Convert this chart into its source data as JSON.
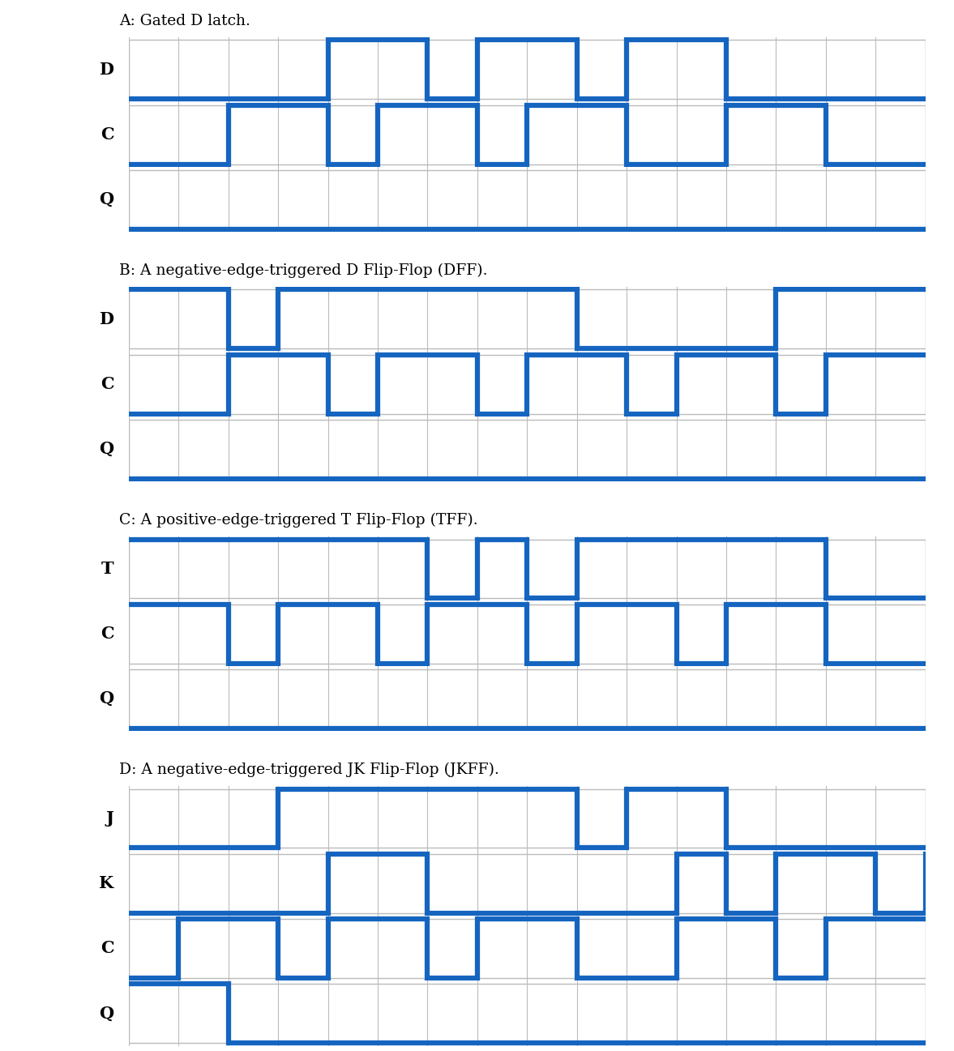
{
  "title_A": "A: Gated D latch.",
  "title_B": "B: A negative-edge-triggered D Flip-Flop (DFF).",
  "title_C": "C: A positive-edge-triggered T Flip-Flop (TFF).",
  "title_D": "D: A negative-edge-triggered JK Flip-Flop (JKFF).",
  "line_color": "#1565c0",
  "bg_color": "#ffffff",
  "grid_color": "#bbbbbb",
  "line_width": 4.5,
  "num_cells": 16,
  "section_A": {
    "D": [
      0,
      0,
      0,
      0,
      1,
      1,
      0,
      1,
      1,
      0,
      1,
      1,
      0,
      0,
      0,
      0,
      0
    ],
    "C": [
      0,
      0,
      1,
      1,
      0,
      1,
      1,
      0,
      1,
      1,
      0,
      0,
      1,
      1,
      0,
      0,
      0
    ],
    "Q": [
      0,
      0,
      0,
      0,
      0,
      0,
      0,
      0,
      0,
      0,
      0,
      0,
      0,
      0,
      0,
      0,
      0
    ]
  },
  "section_B": {
    "D": [
      1,
      1,
      0,
      1,
      1,
      1,
      1,
      1,
      1,
      0,
      0,
      0,
      0,
      1,
      1,
      1,
      1
    ],
    "C": [
      0,
      0,
      1,
      1,
      0,
      1,
      1,
      0,
      1,
      1,
      0,
      1,
      1,
      0,
      1,
      1,
      1
    ],
    "Q": [
      0,
      0,
      0,
      0,
      0,
      0,
      0,
      0,
      0,
      0,
      0,
      0,
      0,
      0,
      0,
      0,
      0
    ]
  },
  "section_C": {
    "T": [
      1,
      1,
      1,
      1,
      1,
      1,
      0,
      1,
      0,
      1,
      1,
      1,
      1,
      1,
      0,
      0,
      0
    ],
    "C": [
      1,
      1,
      0,
      1,
      1,
      0,
      1,
      1,
      0,
      1,
      1,
      0,
      1,
      1,
      0,
      0,
      0
    ],
    "Q": [
      0,
      0,
      0,
      0,
      0,
      0,
      0,
      0,
      0,
      0,
      0,
      0,
      0,
      0,
      0,
      0,
      0
    ]
  },
  "section_D": {
    "J": [
      0,
      0,
      0,
      1,
      1,
      1,
      1,
      1,
      1,
      0,
      1,
      1,
      0,
      0,
      0,
      0,
      0
    ],
    "K": [
      0,
      0,
      0,
      0,
      1,
      1,
      0,
      0,
      0,
      0,
      0,
      1,
      0,
      1,
      1,
      0,
      1
    ],
    "C": [
      0,
      1,
      1,
      0,
      1,
      1,
      0,
      1,
      1,
      0,
      0,
      1,
      1,
      0,
      1,
      1,
      1
    ],
    "Q": [
      1,
      1,
      0,
      0,
      0,
      0,
      0,
      0,
      0,
      0,
      0,
      0,
      0,
      0,
      0,
      0,
      0
    ]
  }
}
